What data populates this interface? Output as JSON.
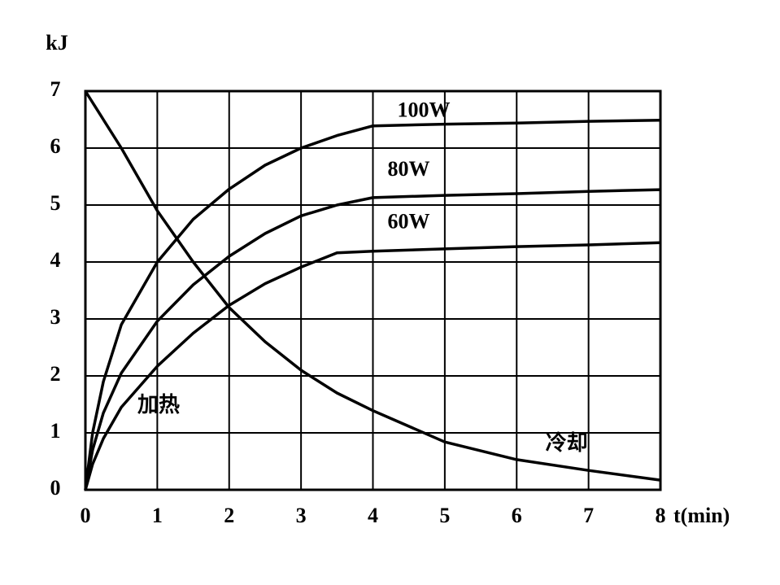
{
  "chart_data": {
    "type": "line",
    "y_label": "kJ",
    "x_label": "t(min)",
    "x": [
      0,
      0.1,
      0.25,
      0.5,
      1,
      1.5,
      2,
      2.5,
      3,
      3.5,
      4,
      5,
      6,
      7,
      8
    ],
    "series": [
      {
        "name": "100W",
        "color": "#000000",
        "values": [
          0,
          1.0,
          1.9,
          2.9,
          4.0,
          4.75,
          5.28,
          5.7,
          6.0,
          6.22,
          6.39,
          6.42,
          6.44,
          6.47,
          6.49
        ]
      },
      {
        "name": "80W",
        "color": "#000000",
        "values": [
          0,
          0.7,
          1.35,
          2.05,
          2.96,
          3.6,
          4.1,
          4.5,
          4.81,
          5.0,
          5.13,
          5.17,
          5.2,
          5.24,
          5.27
        ]
      },
      {
        "name": "60W",
        "color": "#000000",
        "values": [
          0,
          0.45,
          0.9,
          1.45,
          2.17,
          2.75,
          3.24,
          3.62,
          3.91,
          4.16,
          4.19,
          4.23,
          4.27,
          4.3,
          4.34
        ]
      },
      {
        "name": "冷却",
        "color": "#000000",
        "values": [
          7,
          6.8,
          6.5,
          6.0,
          4.9,
          4.0,
          3.2,
          2.6,
          2.1,
          1.7,
          1.39,
          0.84,
          0.53,
          0.34,
          0.17
        ]
      }
    ],
    "annotations": [
      "加热"
    ],
    "xlim": [
      0,
      8
    ],
    "xticks": [
      0,
      1,
      2,
      3,
      4,
      5,
      6,
      7,
      8
    ],
    "ylim": [
      0,
      7
    ],
    "yticks": [
      0,
      1,
      2,
      3,
      4,
      5,
      6,
      7
    ],
    "grid": true
  }
}
